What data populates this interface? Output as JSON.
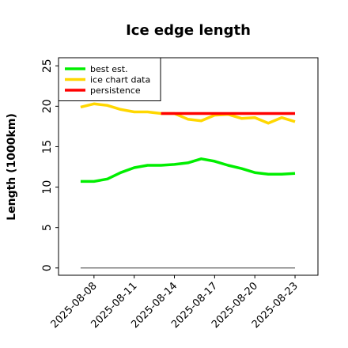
{
  "chart_data": {
    "type": "line",
    "title": "Ice edge length",
    "ylabel": "Length (1000km)",
    "x": [
      "2025-08-07",
      "2025-08-08",
      "2025-08-09",
      "2025-08-10",
      "2025-08-11",
      "2025-08-12",
      "2025-08-13",
      "2025-08-14",
      "2025-08-15",
      "2025-08-16",
      "2025-08-17",
      "2025-08-18",
      "2025-08-19",
      "2025-08-20",
      "2025-08-21",
      "2025-08-22",
      "2025-08-23"
    ],
    "series": [
      {
        "name": "best est.",
        "color": "#00ee00",
        "values": [
          10.7,
          10.7,
          11.0,
          11.8,
          12.4,
          12.7,
          12.7,
          12.8,
          13.0,
          13.5,
          13.2,
          12.7,
          12.3,
          11.8,
          11.6,
          11.6,
          11.7
        ]
      },
      {
        "name": "ice chart data",
        "color": "#ffd700",
        "values": [
          19.9,
          20.3,
          20.1,
          19.6,
          19.3,
          19.3,
          19.1,
          19.1,
          18.4,
          18.2,
          18.9,
          19.0,
          18.5,
          18.6,
          17.9,
          18.6,
          18.1
        ]
      },
      {
        "name": "persistence",
        "color": "#ff0000",
        "values": [
          null,
          null,
          null,
          null,
          null,
          null,
          19.1,
          19.1,
          19.1,
          19.1,
          19.1,
          19.1,
          19.1,
          19.1,
          19.1,
          19.1,
          19.1
        ]
      },
      {
        "color": "#808080",
        "values": [
          0,
          0,
          0,
          0,
          0,
          0,
          0,
          0,
          0,
          0,
          0,
          0,
          0,
          0,
          0,
          0,
          0
        ]
      }
    ],
    "xlim": [
      "2025-08-05T08:30",
      "2025-08-24T17:00"
    ],
    "xticks": [
      "2025-08-08",
      "2025-08-11",
      "2025-08-14",
      "2025-08-17",
      "2025-08-20",
      "2025-08-23"
    ],
    "ylim": [
      -0.9,
      26
    ],
    "yticks": [
      0,
      5,
      10,
      15,
      20,
      25
    ],
    "legend": "upper left"
  }
}
